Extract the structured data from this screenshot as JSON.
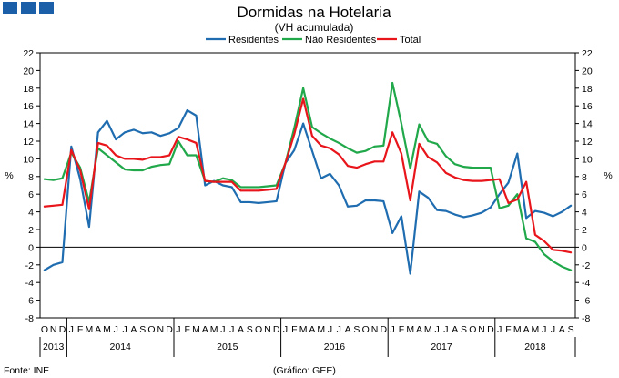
{
  "header": {
    "title": "Dormidas na Hotelaria",
    "subtitle": "(VH acumulada)"
  },
  "footer": {
    "source": "Fonte: INE",
    "credit": "(Gráfico: GEE)"
  },
  "colors": {
    "brand": "#1a5fa8",
    "residentes": "#1f6db0",
    "nao_residentes": "#20a84a",
    "total": "#e8151b"
  },
  "chart_data": {
    "type": "line",
    "title": "Dormidas na Hotelaria",
    "subtitle": "(VH acumulada)",
    "ylabel": "%",
    "ylabel_right": "%",
    "ylim": [
      -8,
      22
    ],
    "yticks": [
      -8,
      -6,
      -4,
      -2,
      0,
      2,
      4,
      6,
      8,
      10,
      12,
      14,
      16,
      18,
      20,
      22
    ],
    "grid": false,
    "legend_position": "top-center",
    "categories": [
      "O",
      "N",
      "D",
      "J",
      "F",
      "M",
      "A",
      "M",
      "J",
      "J",
      "A",
      "S",
      "O",
      "N",
      "D",
      "J",
      "F",
      "M",
      "A",
      "M",
      "J",
      "J",
      "A",
      "S",
      "O",
      "N",
      "D",
      "J",
      "F",
      "M",
      "A",
      "M",
      "J",
      "J",
      "A",
      "S",
      "O",
      "N",
      "D",
      "J",
      "F",
      "M",
      "A",
      "M",
      "J",
      "J",
      "A",
      "S",
      "O",
      "N",
      "D",
      "J",
      "F",
      "M",
      "A",
      "M",
      "J",
      "J",
      "A",
      "S"
    ],
    "years": [
      {
        "label": "2013",
        "start": 0,
        "end": 2
      },
      {
        "label": "2014",
        "start": 3,
        "end": 14
      },
      {
        "label": "2015",
        "start": 15,
        "end": 26
      },
      {
        "label": "2016",
        "start": 27,
        "end": 38
      },
      {
        "label": "2017",
        "start": 39,
        "end": 50
      },
      {
        "label": "2018",
        "start": 51,
        "end": 59
      }
    ],
    "series": [
      {
        "name": "Residentes",
        "color": "#1f6db0",
        "values": [
          -2.6,
          -2.0,
          -1.7,
          11.4,
          7.7,
          2.3,
          13.0,
          14.3,
          12.2,
          13.0,
          13.3,
          12.9,
          13.0,
          12.6,
          12.9,
          13.5,
          15.5,
          14.9,
          7.0,
          7.5,
          7.0,
          6.8,
          5.1,
          5.1,
          5.0,
          5.1,
          5.2,
          9.5,
          11.0,
          14.0,
          10.9,
          7.8,
          8.3,
          7.0,
          4.6,
          4.7,
          5.3,
          5.3,
          5.2,
          1.6,
          3.5,
          -3.0,
          6.3,
          5.6,
          4.2,
          4.1,
          3.7,
          3.4,
          3.6,
          3.9,
          4.5,
          6.0,
          7.3,
          10.6,
          3.3,
          4.1,
          3.9,
          3.5,
          4.0,
          4.7
        ]
      },
      {
        "name": "Não Residentes",
        "color": "#20a84a",
        "values": [
          7.7,
          7.6,
          7.8,
          10.7,
          9.0,
          5.1,
          11.2,
          10.4,
          9.6,
          8.8,
          8.7,
          8.7,
          9.1,
          9.3,
          9.4,
          12.0,
          10.4,
          10.4,
          7.5,
          7.4,
          7.8,
          7.6,
          6.8,
          6.8,
          6.8,
          6.9,
          7.0,
          9.5,
          13.5,
          18.0,
          13.6,
          12.9,
          12.3,
          11.8,
          11.2,
          10.7,
          10.9,
          11.4,
          11.5,
          18.6,
          14.0,
          8.9,
          13.9,
          12.0,
          11.7,
          10.3,
          9.4,
          9.1,
          9.0,
          9.0,
          9.0,
          4.4,
          4.7,
          6.0,
          1.0,
          0.6,
          -0.8,
          -1.6,
          -2.2,
          -2.6
        ]
      },
      {
        "name": "Total",
        "color": "#e8151b",
        "values": [
          4.6,
          4.7,
          4.8,
          11.0,
          8.7,
          4.3,
          11.8,
          11.5,
          10.4,
          10.0,
          10.0,
          9.9,
          10.2,
          10.2,
          10.4,
          12.5,
          12.2,
          11.8,
          7.5,
          7.4,
          7.4,
          7.4,
          6.4,
          6.4,
          6.4,
          6.5,
          6.6,
          9.5,
          12.8,
          16.8,
          12.6,
          11.5,
          11.2,
          10.5,
          9.2,
          9.0,
          9.4,
          9.7,
          9.7,
          13.0,
          10.6,
          5.3,
          11.7,
          10.2,
          9.6,
          8.4,
          7.9,
          7.6,
          7.5,
          7.5,
          7.6,
          7.7,
          5.0,
          5.4,
          7.4,
          1.4,
          0.7,
          -0.3,
          -0.4,
          -0.6
        ]
      }
    ]
  }
}
